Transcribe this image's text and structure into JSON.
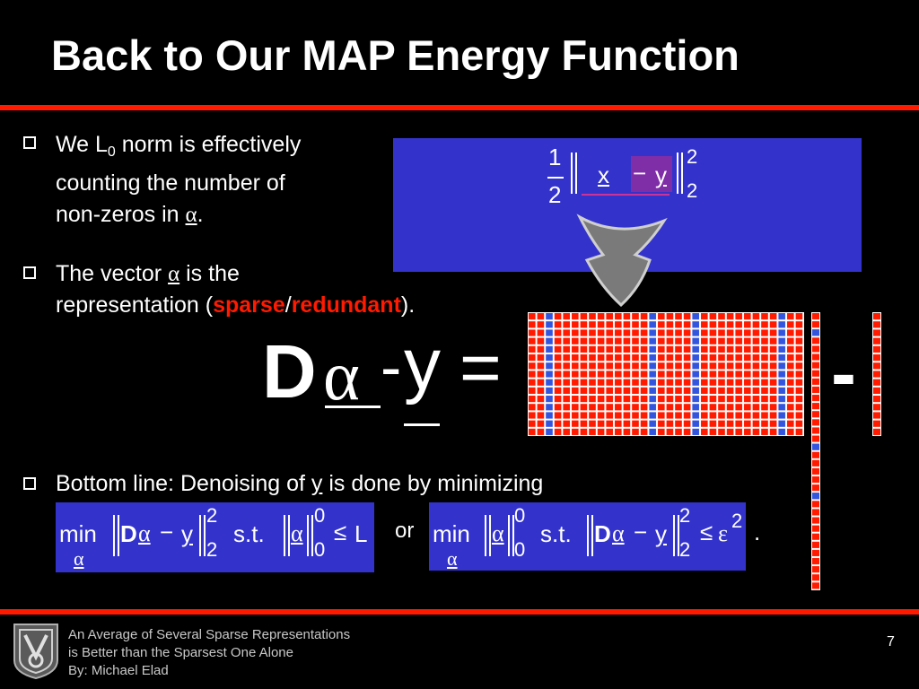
{
  "title": "Back to Our MAP Energy Function",
  "bullets": {
    "b1_line1_pre": "We L",
    "b1_sub": "0",
    "b1_line1_post": " norm is effectively",
    "b1_line2": "counting the number of",
    "b1_line3_pre": "non-zeros in ",
    "b1_line3_alpha": "α",
    "b1_line3_post": ".",
    "b2_line1_pre": "The vector ",
    "b2_alpha": "α",
    "b2_line1_post": " is the",
    "b2_line2_pre": "representation (",
    "b2_sparse": "sparse",
    "b2_slash": "/",
    "b2_redundant": "redundant",
    "b2_line2_post": ").",
    "b3_pre": "Bottom line: Denoising of ",
    "b3_y": "y",
    "b3_post": " is done by minimizing"
  },
  "top_equation": {
    "half_num": "1",
    "half_den": "2",
    "x": "x",
    "minus": "−",
    "y": "y",
    "sup": "2",
    "sub": "2"
  },
  "main_equation": {
    "D": "D",
    "alpha": "α",
    "minus": "-",
    "y": "y",
    "equals": "=",
    "minus2": "-"
  },
  "formula1": {
    "min": "min",
    "min_sub": "α",
    "D": "D",
    "alpha": "α",
    "minus": "−",
    "y": "y",
    "sup": "2",
    "sub": "2",
    "st": "s.t.",
    "alpha2": "α",
    "sup2": "0",
    "sub2": "0",
    "leq": "≤",
    "L": "L"
  },
  "or_text": "or",
  "formula2": {
    "min": "min",
    "min_sub": "α",
    "alpha": "α",
    "sup": "0",
    "sub": "0",
    "st": "s.t.",
    "D": "D",
    "alpha2": "α",
    "minus": "−",
    "y": "y",
    "sup2": "2",
    "sub2": "2",
    "leq": "≤",
    "eps": "ε",
    "eps_sup": "2",
    "period": "."
  },
  "footer": {
    "line1": "An Average of Several Sparse Representations",
    "line2": "is Better than the Sparsest One Alone",
    "line3": "By: Michael Elad",
    "page_number": "7"
  },
  "colors": {
    "accent_red": "#ff1a00",
    "box_blue": "#3333cc",
    "matrix_red": "#ff1a00",
    "matrix_blue": "#3355dd",
    "arrow_gray": "#7a7a7a"
  }
}
